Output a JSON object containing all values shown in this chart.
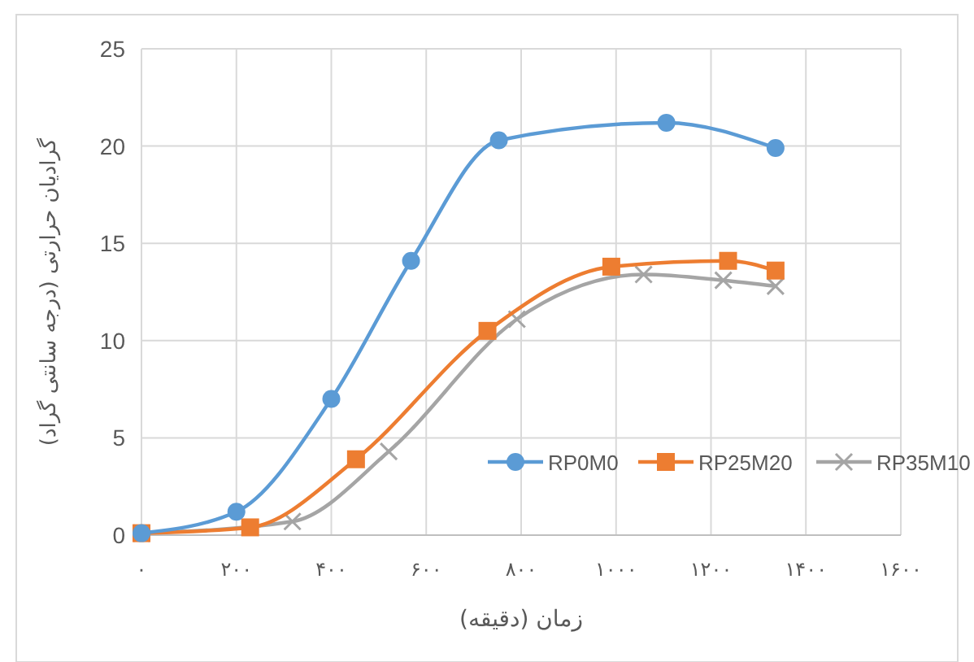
{
  "chart_data": {
    "type": "line",
    "xlabel": "زمان (دقیقه)",
    "ylabel": "گرادیان حرارتی (درجه سانتی گراد)",
    "xlim": [
      0,
      1600
    ],
    "xticks": [
      {
        "value": 0,
        "label": "۰"
      },
      {
        "value": 200,
        "label": "۲۰۰"
      },
      {
        "value": 400,
        "label": "۴۰۰"
      },
      {
        "value": 600,
        "label": "۶۰۰"
      },
      {
        "value": 800,
        "label": "۸۰۰"
      },
      {
        "value": 1000,
        "label": "۱۰۰۰"
      },
      {
        "value": 1200,
        "label": "۱۲۰۰"
      },
      {
        "value": 1400,
        "label": "۱۴۰۰"
      },
      {
        "value": 1600,
        "label": "۱۶۰۰"
      }
    ],
    "ylim": [
      0,
      25
    ],
    "yticks": [
      0,
      5,
      10,
      15,
      20,
      25
    ],
    "grid": true,
    "legend": "bottom right",
    "series": [
      {
        "name": "RP0M0",
        "color": "#5b9bd5",
        "marker": "circle",
        "x": [
          0,
          200,
          400,
          568,
          753,
          1106,
          1336
        ],
        "values": [
          0.1,
          1.2,
          7.0,
          14.1,
          20.3,
          21.2,
          19.9
        ]
      },
      {
        "name": "RP25M20",
        "color": "#ed7d31",
        "marker": "square",
        "x": [
          0,
          229,
          452,
          729,
          990,
          1236,
          1336
        ],
        "values": [
          0.1,
          0.4,
          3.9,
          10.5,
          13.8,
          14.1,
          13.6
        ]
      },
      {
        "name": "RP35M10",
        "color": "#a5a5a5",
        "marker": "cross",
        "x": [
          0,
          318,
          521,
          791,
          1058,
          1226,
          1336
        ],
        "values": [
          0.1,
          0.7,
          4.3,
          11.1,
          13.4,
          13.1,
          12.8
        ]
      }
    ]
  }
}
